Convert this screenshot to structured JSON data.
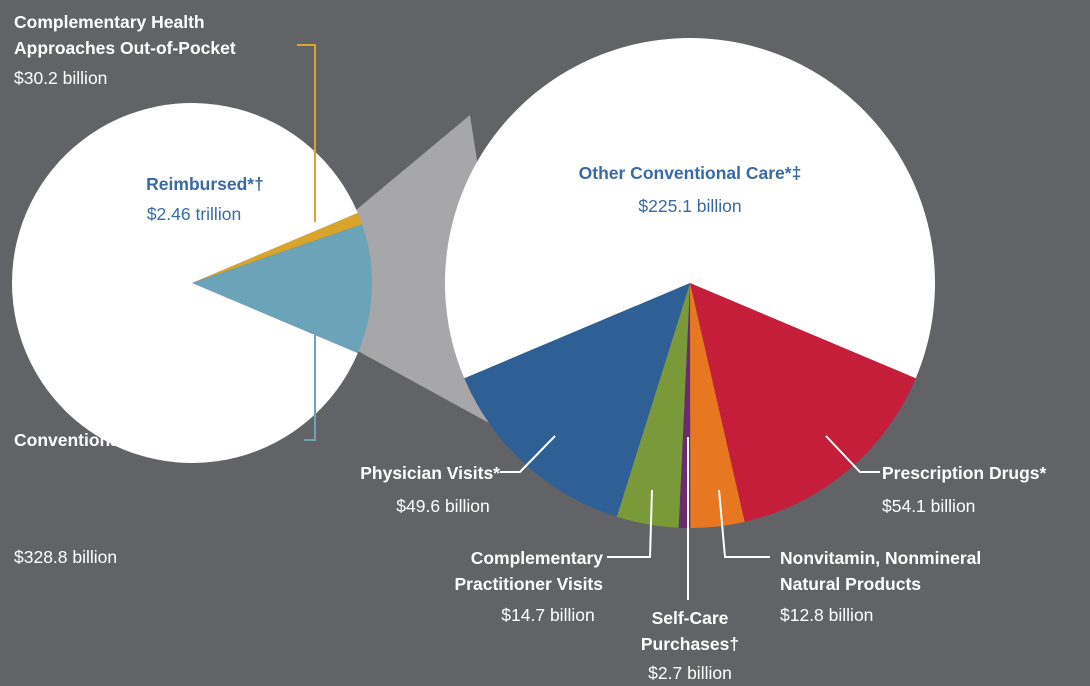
{
  "chart_data": [
    {
      "type": "pie",
      "categories": [
        "Complementary Health Approaches Out-of-Pocket",
        "Conventional Out-of-Pocket*",
        "Reimbursed*†"
      ],
      "values": [
        30.2,
        328.8,
        2460
      ],
      "value_labels": [
        "$30.2 billion",
        "$328.8 billion",
        "$2.46 trillion"
      ],
      "colors": [
        "#d9a42a",
        "#6ba3b8",
        "#ffffff"
      ]
    },
    {
      "type": "pie",
      "categories": [
        "Prescription Drugs*",
        "Nonvitamin, Nonmineral Natural Products",
        "Self-Care Purchases†",
        "Complementary Practitioner Visits",
        "Physician Visits*",
        "Other Conventional Care*‡"
      ],
      "values": [
        54.1,
        12.8,
        2.7,
        14.7,
        49.6,
        225.1
      ],
      "value_labels": [
        "$54.1 billion",
        "$12.8 billion",
        "$2.7 billion",
        "$14.7 billion",
        "$49.6 billion",
        "$225.1 billion"
      ],
      "colors": [
        "#c41e3a",
        "#e87722",
        "#6a2c6e",
        "#7a9a3a",
        "#2e5f95",
        "#ffffff"
      ]
    }
  ]
}
